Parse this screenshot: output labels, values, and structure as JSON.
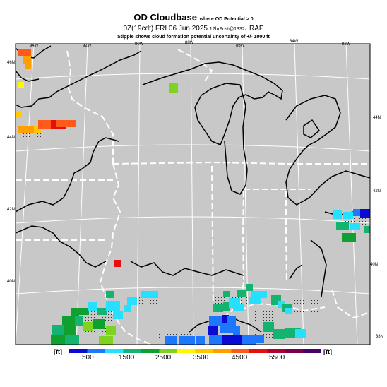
{
  "title": {
    "main": "OD Cloudbase",
    "qualifier": "where OD Potential > 0",
    "time_line": "0Z(19cdt) FRI 06 Jun 2025",
    "time_small": "12hrFcst@1332z",
    "model": "RAP",
    "note": "Stipple shows cloud formation potential uncertainty of +/- 1000 ft"
  },
  "lon_labels": [
    "94W",
    "92W",
    "90W",
    "88W",
    "86W",
    "84W",
    "82W"
  ],
  "lat_labels_left": [
    "46N",
    "44N",
    "42N",
    "40N"
  ],
  "lat_labels_right": [
    "44N",
    "42N",
    "40N",
    "38N"
  ],
  "colorbar": {
    "unit_left": "[ft]",
    "unit_right": "[ft]",
    "tick_labels": [
      "500",
      "1500",
      "2500",
      "3500",
      "4500",
      "5500"
    ],
    "colors": [
      "#0a0ad2",
      "#1e78ff",
      "#25e0ff",
      "#14b470",
      "#10a030",
      "#80d220",
      "#fff800",
      "#ffc800",
      "#ffa000",
      "#ff5a1a",
      "#e41010",
      "#b00030",
      "#7a0050",
      "#4a0064"
    ]
  },
  "colors": {
    "land": "#c8c8c8",
    "coast": "#000000",
    "border": "#ffffff"
  }
}
